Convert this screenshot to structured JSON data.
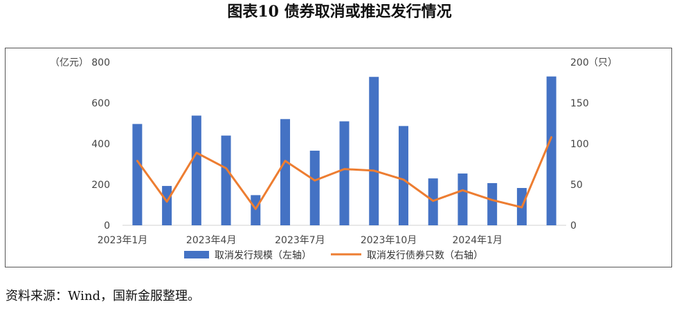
{
  "figure": {
    "title": "图表10  债券取消或推迟发行情况",
    "source": "资料来源：Wind，国新金服整理。"
  },
  "chart_data": {
    "type": "bar",
    "categories": [
      "2023年1月",
      "2023年2月",
      "2023年3月",
      "2023年4月",
      "2023年5月",
      "2023年6月",
      "2023年7月",
      "2023年8月",
      "2023年9月",
      "2023年10月",
      "2023年11月",
      "2023年12月",
      "2024年1月",
      "2024年2月",
      "2024年3月"
    ],
    "x_tick_labels": [
      "2023年1月",
      "",
      "",
      "2023年4月",
      "",
      "",
      "2023年7月",
      "",
      "",
      "2023年10月",
      "",
      "",
      "2024年1月",
      "",
      ""
    ],
    "series": [
      {
        "name": "取消发行规模（左轴）",
        "type": "bar",
        "axis": "left",
        "color": "#4472C4",
        "values": [
          497,
          193,
          538,
          440,
          148,
          521,
          366,
          510,
          728,
          487,
          230,
          254,
          207,
          183,
          730
        ]
      },
      {
        "name": "取消发行债券只数（右轴）",
        "type": "line",
        "axis": "right",
        "color": "#ED7D31",
        "values": [
          79,
          29,
          89,
          70,
          20,
          79,
          55,
          69,
          67,
          56,
          30,
          43,
          31,
          22,
          108
        ]
      }
    ],
    "y_left": {
      "unit": "（亿元）",
      "ylim": [
        0,
        800
      ],
      "ticks": [
        "0",
        "200",
        "400",
        "600",
        "800"
      ]
    },
    "y_right": {
      "unit": "（只）",
      "ylim": [
        0,
        200
      ],
      "ticks": [
        "0",
        "50",
        "100",
        "150",
        "200"
      ]
    },
    "grid": false,
    "legend_position": "bottom"
  }
}
